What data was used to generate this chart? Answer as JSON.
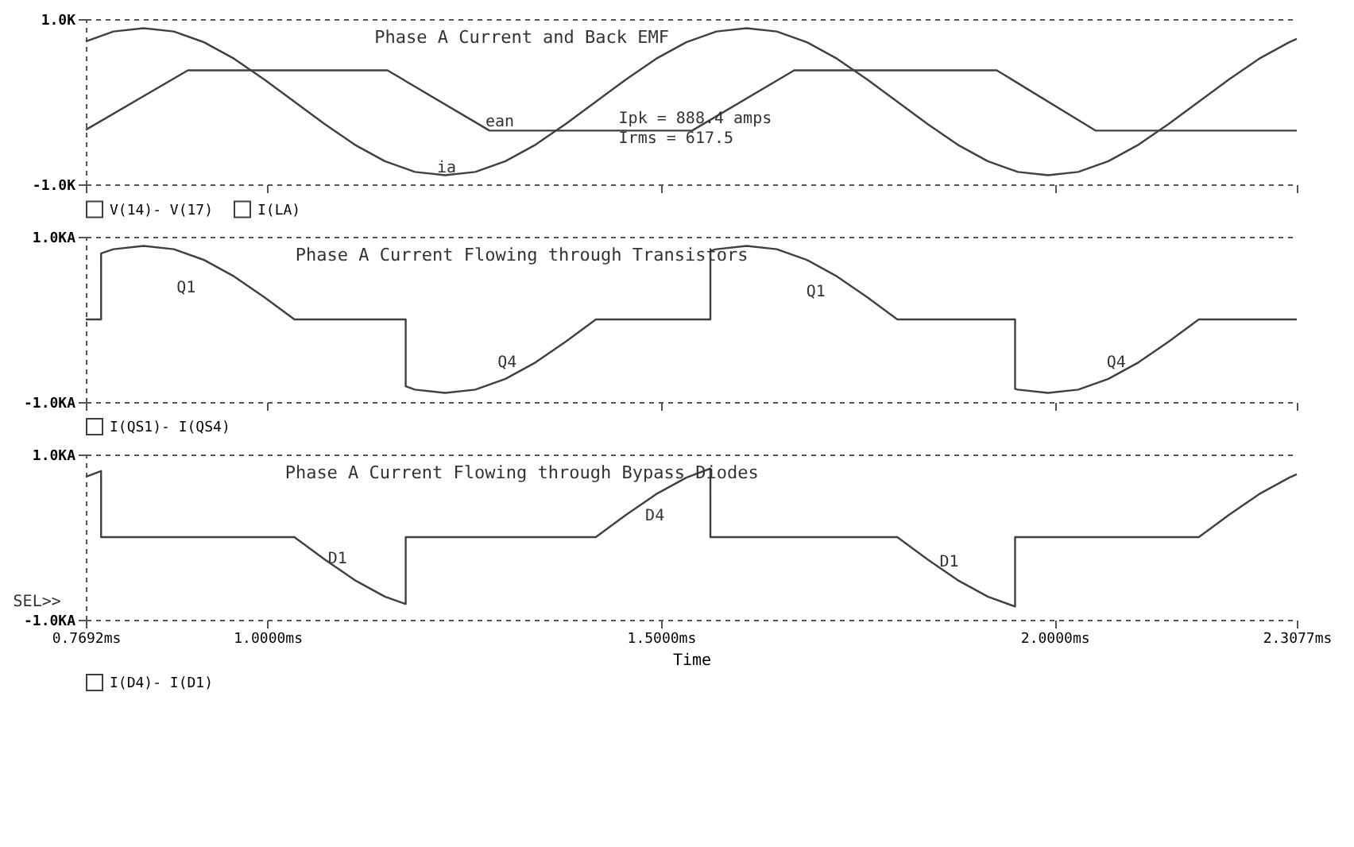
{
  "chart_data": [
    {
      "type": "line",
      "title": "Phase A Current and Back EMF",
      "xlim": [
        0.7692,
        2.3077
      ],
      "ylim": [
        -1000,
        1000
      ],
      "xticks": [
        {
          "value": 0.7692,
          "label": null
        },
        {
          "value": 1,
          "label": null
        },
        {
          "value": 1.5,
          "label": null
        },
        {
          "value": 2,
          "label": null
        },
        {
          "value": 2.3077,
          "label": null
        }
      ],
      "yticks": [
        {
          "value": -1000,
          "label": "-1.0K"
        },
        {
          "value": 1000,
          "label": "1.0K"
        }
      ],
      "tick_labels": "y",
      "grid": "y",
      "legend": "bottom",
      "annotations": [
        "ean",
        "ia",
        "Ipk = 888.4 amps",
        "Irms = 617.5"
      ],
      "series": [
        {
          "name": "V(14)- V(17)",
          "color": "#404040",
          "x": [
            0.7692,
            0.8989,
            1.1524,
            1.2821,
            1.5395,
            1.6692,
            1.9265,
            2.0523,
            2.3077
          ],
          "values": [
            -340,
            380,
            380,
            -350,
            -350,
            380,
            380,
            -350,
            -350
          ]
        },
        {
          "name": "I(LA)",
          "color": "#404040",
          "x": [
            0.7692,
            0.8044,
            0.8427,
            0.881,
            0.9193,
            0.9576,
            0.9959,
            1.0342,
            1.0725,
            1.1108,
            1.1491,
            1.1874,
            1.2257,
            1.264,
            1.3023,
            1.3406,
            1.3789,
            1.4172,
            1.4555,
            1.4938,
            1.5321,
            1.5704,
            1.6087,
            1.647,
            1.6853,
            1.7236,
            1.7619,
            1.8002,
            1.8385,
            1.8768,
            1.9151,
            1.9534,
            1.9917,
            2.03,
            2.0683,
            2.1066,
            2.1449,
            2.1832,
            2.2215,
            2.2598,
            2.2981,
            2.3077
          ],
          "values": [
            730,
            850,
            890,
            850,
            720,
            520,
            270,
            0,
            -270,
            -520,
            -720,
            -850,
            -890,
            -850,
            -720,
            -520,
            -270,
            0,
            270,
            520,
            720,
            850,
            890,
            850,
            720,
            520,
            270,
            0,
            -270,
            -520,
            -720,
            -850,
            -890,
            -850,
            -720,
            -520,
            -270,
            0,
            270,
            520,
            720,
            760
          ]
        }
      ]
    },
    {
      "type": "line",
      "title": "Phase A Current Flowing through Transistors",
      "xlim": [
        0.7692,
        2.3077
      ],
      "ylim": [
        -1,
        1
      ],
      "xticks": [
        {
          "value": 0.7692,
          "label": null
        },
        {
          "value": 1,
          "label": null
        },
        {
          "value": 1.5,
          "label": null
        },
        {
          "value": 2,
          "label": null
        },
        {
          "value": 2.3077,
          "label": null
        }
      ],
      "yticks": [
        {
          "value": -1,
          "label": "-1.0KA"
        },
        {
          "value": 1,
          "label": "1.0KA"
        }
      ],
      "tick_labels": "y",
      "grid": "y",
      "legend": "bottom",
      "annotations": [
        "Q1",
        "Q1",
        "Q4",
        "Q4"
      ],
      "series": [
        {
          "name": "I(QS1)- I(QS4)",
          "color": "#404040",
          "x": [
            0.7692,
            0.7886,
            0.7886,
            0.8044,
            0.8427,
            0.881,
            0.9193,
            0.9576,
            0.9959,
            1.0342,
            1.1756,
            1.1756,
            1.1874,
            1.2257,
            1.264,
            1.3023,
            1.3406,
            1.3789,
            1.4172,
            1.5627,
            1.5627,
            1.5704,
            1.6087,
            1.647,
            1.6853,
            1.7236,
            1.7619,
            1.8002,
            1.9498,
            1.9498,
            1.9534,
            1.9917,
            2.03,
            2.0683,
            2.1066,
            2.1449,
            2.1832,
            2.3077
          ],
          "values": [
            0,
            0,
            0.8,
            0.85,
            0.89,
            0.85,
            0.72,
            0.52,
            0.27,
            0,
            0,
            -0.81,
            -0.85,
            -0.89,
            -0.85,
            -0.72,
            -0.52,
            -0.27,
            0,
            0,
            0.83,
            0.85,
            0.89,
            0.85,
            0.72,
            0.52,
            0.27,
            0,
            0,
            -0.84,
            -0.85,
            -0.89,
            -0.85,
            -0.72,
            -0.52,
            -0.27,
            0,
            0
          ]
        }
      ]
    },
    {
      "type": "line",
      "title": "Phase A Current Flowing through Bypass Diodes",
      "xlabel": "Time",
      "xlim": [
        0.7692,
        2.3077
      ],
      "ylim": [
        -1,
        1
      ],
      "xticks": [
        {
          "value": 0.7692,
          "label": "0.7692ms"
        },
        {
          "value": 1,
          "label": "1.0000ms"
        },
        {
          "value": 1.5,
          "label": "1.5000ms"
        },
        {
          "value": 2,
          "label": "2.0000ms"
        },
        {
          "value": 2.3077,
          "label": "2.3077ms"
        }
      ],
      "yticks": [
        {
          "value": -1,
          "label": "-1.0KA"
        },
        {
          "value": 1,
          "label": "1.0KA"
        }
      ],
      "grid": "y",
      "legend": "bottom",
      "annotations": [
        "D1",
        "D4",
        "D1",
        "SEL>>"
      ],
      "series": [
        {
          "name": "I(D4)- I(D1)",
          "color": "#404040",
          "x": [
            0.7692,
            0.7886,
            0.7886,
            1.0342,
            1.0725,
            1.1108,
            1.1491,
            1.1756,
            1.1756,
            1.4172,
            1.4555,
            1.4938,
            1.5321,
            1.5627,
            1.5627,
            1.8002,
            1.8385,
            1.8768,
            1.9151,
            1.9498,
            1.9498,
            2.1832,
            2.2215,
            2.2598,
            2.2981,
            2.3077
          ],
          "values": [
            0.73,
            0.8,
            0,
            0,
            -0.27,
            -0.52,
            -0.72,
            -0.81,
            0,
            0,
            0.27,
            0.52,
            0.72,
            0.83,
            0,
            0,
            -0.27,
            -0.52,
            -0.72,
            -0.84,
            0,
            0,
            0.27,
            0.52,
            0.72,
            0.76
          ]
        }
      ]
    }
  ]
}
